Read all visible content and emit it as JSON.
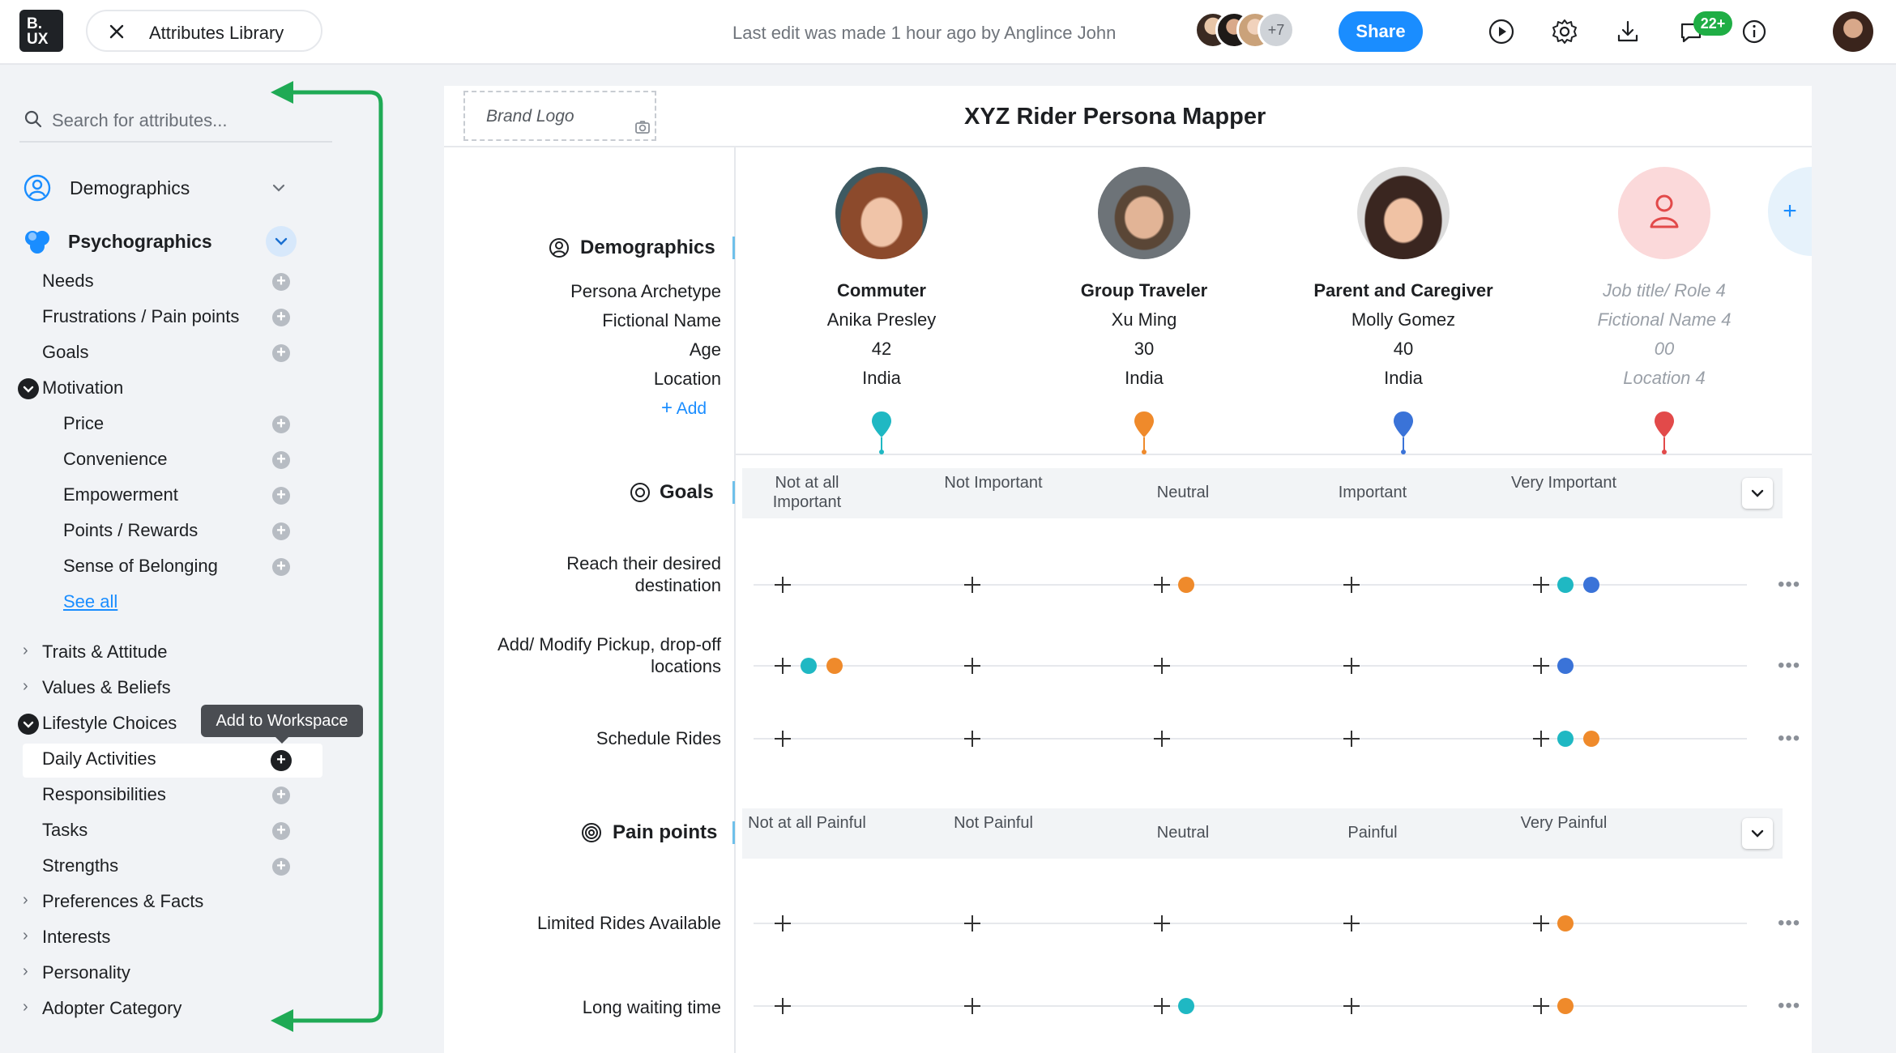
{
  "topbar": {
    "logo_line1": "B.",
    "logo_line2": "UX",
    "library_title": "Attributes Library",
    "last_edit": "Last edit was made 1 hour ago by Anglince John",
    "more_collaborators": "+7",
    "share_label": "Share",
    "notification_count": "22+"
  },
  "sidebar": {
    "search_placeholder": "Search for attributes...",
    "categories": {
      "demographics": "Demographics",
      "psychographics": "Psychographics"
    },
    "psycho_items": [
      "Needs",
      "Frustrations / Pain points",
      "Goals"
    ],
    "motivation": "Motivation",
    "motivation_items": [
      "Price",
      "Convenience",
      "Empowerment",
      "Points / Rewards",
      "Sense of Belonging"
    ],
    "see_all": "See all",
    "traits": "Traits & Attitude",
    "values": "Values & Beliefs",
    "lifestyle": "Lifestyle Choices",
    "tooltip": "Add to Workspace",
    "lifestyle_items": [
      "Daily Activities",
      "Responsibilities",
      "Tasks",
      "Strengths"
    ],
    "more_groups": [
      "Preferences & Facts",
      "Interests",
      "Personality",
      "Adopter Category"
    ]
  },
  "canvas": {
    "brand_logo": "Brand Logo",
    "title": "XYZ Rider Persona Mapper",
    "demographics": {
      "title": "Demographics",
      "labels": [
        "Persona Archetype",
        "Fictional Name",
        "Age",
        "Location"
      ],
      "add_label": "Add"
    },
    "personas": [
      {
        "role": "Commuter",
        "name": "Anika Presley",
        "age": "42",
        "location": "India",
        "color": "#1fb8c3"
      },
      {
        "role": "Group Traveler",
        "name": "Xu Ming",
        "age": "30",
        "location": "India",
        "color": "#ef8a2b"
      },
      {
        "role": "Parent and Caregiver",
        "name": "Molly Gomez",
        "age": "40",
        "location": "India",
        "color": "#3a73d8"
      },
      {
        "role": "Job title/ Role  4",
        "name": "Fictional Name 4",
        "age": "00",
        "location": "Location 4",
        "color": "#e24a4a"
      }
    ],
    "goals": {
      "title": "Goals",
      "scale": [
        "Not at all Important",
        "Not Important",
        "Neutral",
        "Important",
        "Very Important"
      ],
      "rows": [
        {
          "label": "Reach their desired destination",
          "ratings": {
            "commuter": 5,
            "group_traveler": 3,
            "parent_caregiver": 5
          }
        },
        {
          "label": "Add/ Modify Pickup, drop-off locations",
          "ratings": {
            "commuter": 1,
            "group_traveler": 1,
            "parent_caregiver": 5
          }
        },
        {
          "label": "Schedule Rides",
          "ratings": {
            "commuter": 5,
            "group_traveler": 5
          }
        }
      ]
    },
    "pain_points": {
      "title": "Pain points",
      "scale": [
        "Not at all Painful",
        "Not Painful",
        "Neutral",
        "Painful",
        "Very Painful"
      ],
      "rows": [
        {
          "label": "Limited Rides Available",
          "ratings": {
            "group_traveler": 5
          }
        },
        {
          "label": "Long waiting time",
          "ratings": {
            "commuter": 3,
            "group_traveler": 5
          }
        }
      ]
    }
  },
  "colors": {
    "accent": "#1a8dff",
    "commuter": "#1fb8c3",
    "group_traveler": "#ef8a2b",
    "parent_caregiver": "#3a73d8",
    "placeholder": "#e24a4a",
    "arrow": "#1faa55"
  }
}
